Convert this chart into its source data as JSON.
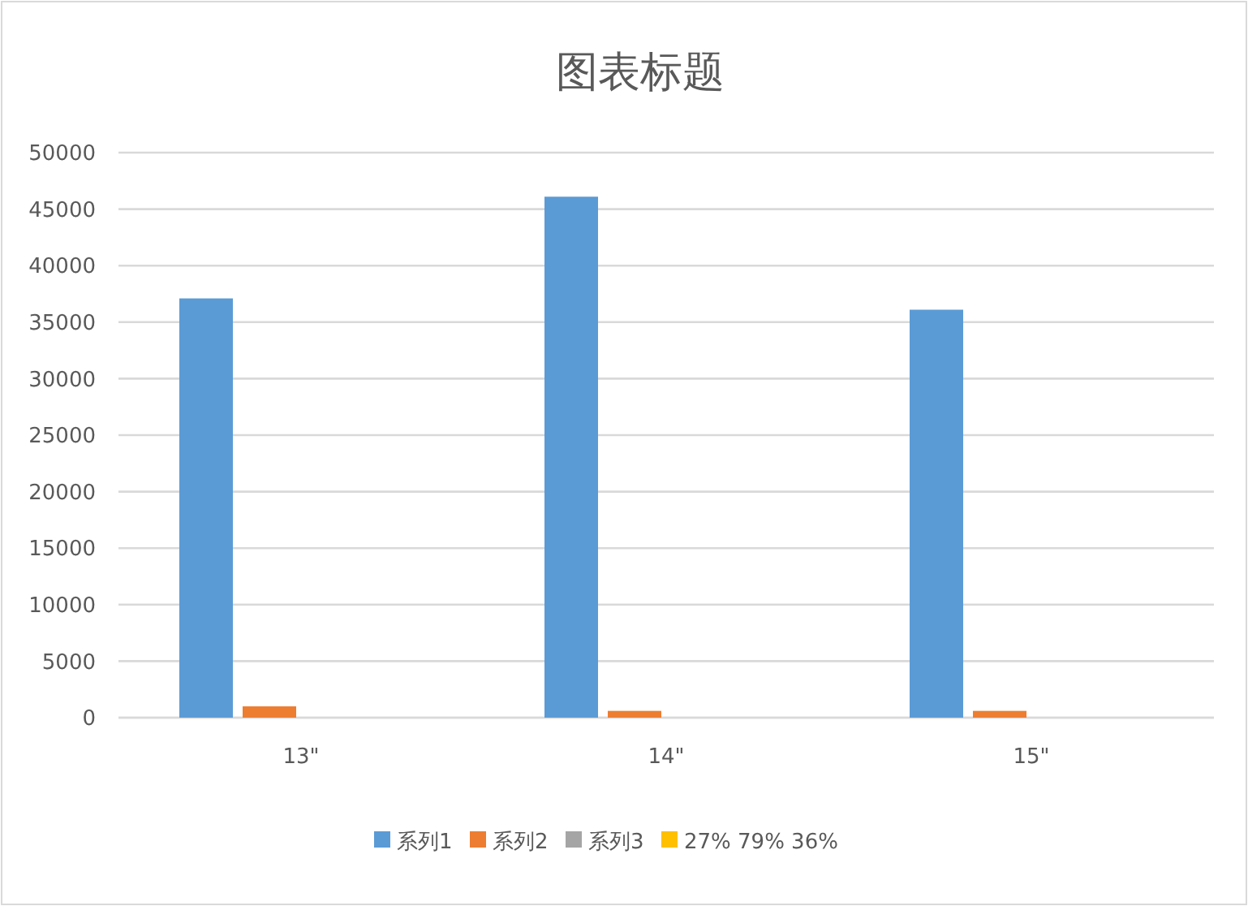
{
  "chart_data": {
    "type": "bar",
    "title": "图表标题",
    "categories": [
      "13\"",
      "14\"",
      "15\""
    ],
    "series": [
      {
        "name": "系列1",
        "color": "#5b9bd5",
        "values": [
          37100,
          46100,
          36100
        ]
      },
      {
        "name": "系列2",
        "color": "#ed7d31",
        "values": [
          1000,
          600,
          600
        ]
      },
      {
        "name": "系列3",
        "color": "#a5a5a5",
        "values": [
          0,
          0,
          0
        ]
      },
      {
        "name": "27% 79% 36%",
        "color": "#ffc000",
        "values": [
          0,
          0,
          0
        ]
      }
    ],
    "ylim": [
      0,
      50000
    ],
    "yticks": [
      0,
      5000,
      10000,
      15000,
      20000,
      25000,
      30000,
      35000,
      40000,
      45000,
      50000
    ],
    "grid": "y",
    "legend": "bottom"
  }
}
